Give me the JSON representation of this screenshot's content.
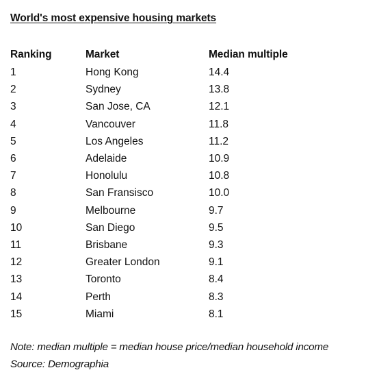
{
  "document": {
    "title": "World's most expensive housing markets",
    "columns": {
      "ranking": "Ranking",
      "market": "Market",
      "median_multiple": "Median multiple"
    },
    "rows": [
      {
        "ranking": "1",
        "market": "Hong Kong",
        "median_multiple": "14.4"
      },
      {
        "ranking": "2",
        "market": "Sydney",
        "median_multiple": "13.8"
      },
      {
        "ranking": "3",
        "market": "San Jose, CA",
        "median_multiple": "12.1"
      },
      {
        "ranking": "4",
        "market": "Vancouver",
        "median_multiple": "11.8"
      },
      {
        "ranking": "5",
        "market": "Los Angeles",
        "median_multiple": "11.2"
      },
      {
        "ranking": "6",
        "market": "Adelaide",
        "median_multiple": "10.9"
      },
      {
        "ranking": "7",
        "market": "Honolulu",
        "median_multiple": "10.8"
      },
      {
        "ranking": "8",
        "market": "San Fransisco",
        "median_multiple": "10.0"
      },
      {
        "ranking": "9",
        "market": "Melbourne",
        "median_multiple": "9.7"
      },
      {
        "ranking": "10",
        "market": "San Diego",
        "median_multiple": "9.5"
      },
      {
        "ranking": "11",
        "market": "Brisbane",
        "median_multiple": "9.3"
      },
      {
        "ranking": "12",
        "market": "Greater London",
        "median_multiple": "9.1"
      },
      {
        "ranking": "13",
        "market": "Toronto",
        "median_multiple": "8.4"
      },
      {
        "ranking": "14",
        "market": "Perth",
        "median_multiple": "8.3"
      },
      {
        "ranking": "15",
        "market": "Miami",
        "median_multiple": "8.1"
      }
    ],
    "note": "Note: median multiple = median house price/median household income",
    "source": "Source: Demographia"
  }
}
